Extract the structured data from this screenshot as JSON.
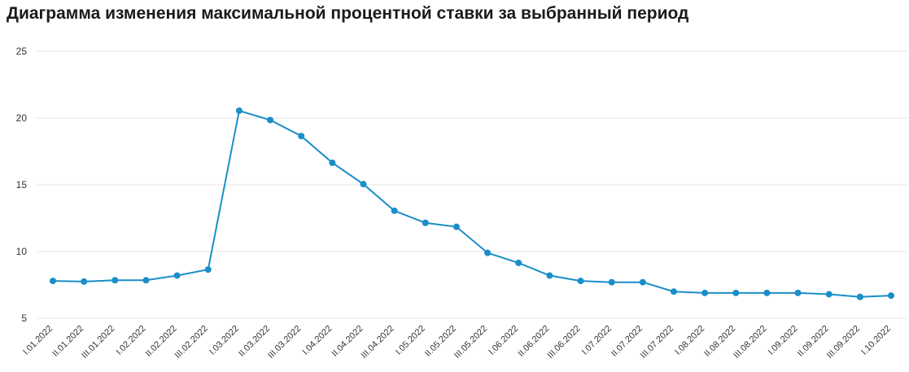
{
  "chart_data": {
    "type": "line",
    "title": "Диаграмма изменения максимальной процентной ставки за выбранный период",
    "xlabel": "",
    "ylabel": "",
    "ylim": [
      5,
      25
    ],
    "yticks": [
      5,
      10,
      15,
      20,
      25
    ],
    "grid": true,
    "legend": "none",
    "categories": [
      "I.01.2022",
      "II.01.2022",
      "III.01.2022",
      "I.02.2022",
      "II.02.2022",
      "III.02.2022",
      "I.03.2022",
      "II.03.2022",
      "III.03.2022",
      "I.04.2022",
      "II.04.2022",
      "III.04.2022",
      "I.05.2022",
      "II.05.2022",
      "III.05.2022",
      "I.06.2022",
      "II.06.2022",
      "III.06.2022",
      "I.07.2022",
      "II.07.2022",
      "III.07.2022",
      "I.08.2022",
      "II.08.2022",
      "III.08.2022",
      "I.09.2022",
      "II.09.2022",
      "III.09.2022",
      "I.10.2022"
    ],
    "series": [
      {
        "values": [
          7.8,
          7.75,
          7.85,
          7.85,
          8.2,
          8.65,
          20.55,
          19.85,
          18.65,
          16.65,
          15.05,
          13.05,
          12.15,
          11.85,
          9.9,
          9.15,
          8.2,
          7.8,
          7.7,
          7.7,
          7.0,
          6.9,
          6.9,
          6.9,
          6.9,
          6.8,
          6.6,
          6.7
        ],
        "color": "#1a8ec8"
      }
    ]
  }
}
